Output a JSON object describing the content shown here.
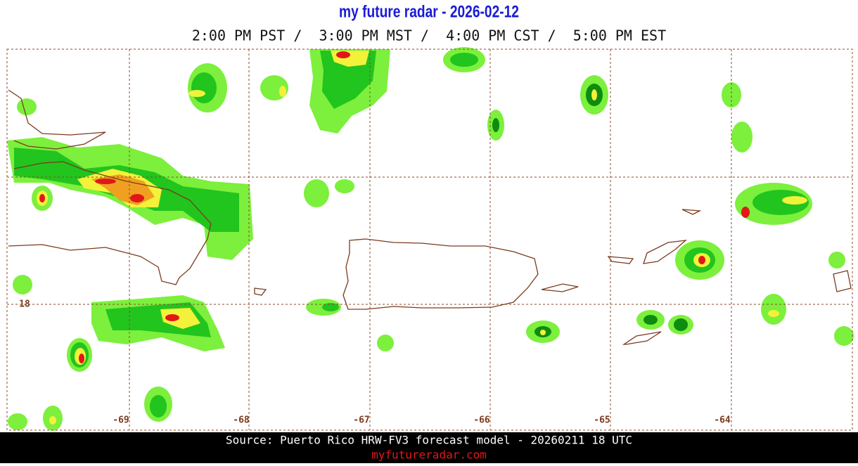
{
  "header": {
    "title": "my future radar - 2026-02-12",
    "time_line": "2:00 PM PST /  3:00 PM MST /  4:00 PM CST /  5:00 PM EST"
  },
  "map": {
    "longitude_labels": [
      "-69",
      "-68",
      "-67",
      "-66",
      "-65",
      "-64"
    ],
    "latitude_labels": [
      "18"
    ]
  },
  "footer": {
    "source": "Source: Puerto Rico HRW-FV3 forecast model - 20260211 18 UTC",
    "url": "myfutureradar.com"
  }
}
